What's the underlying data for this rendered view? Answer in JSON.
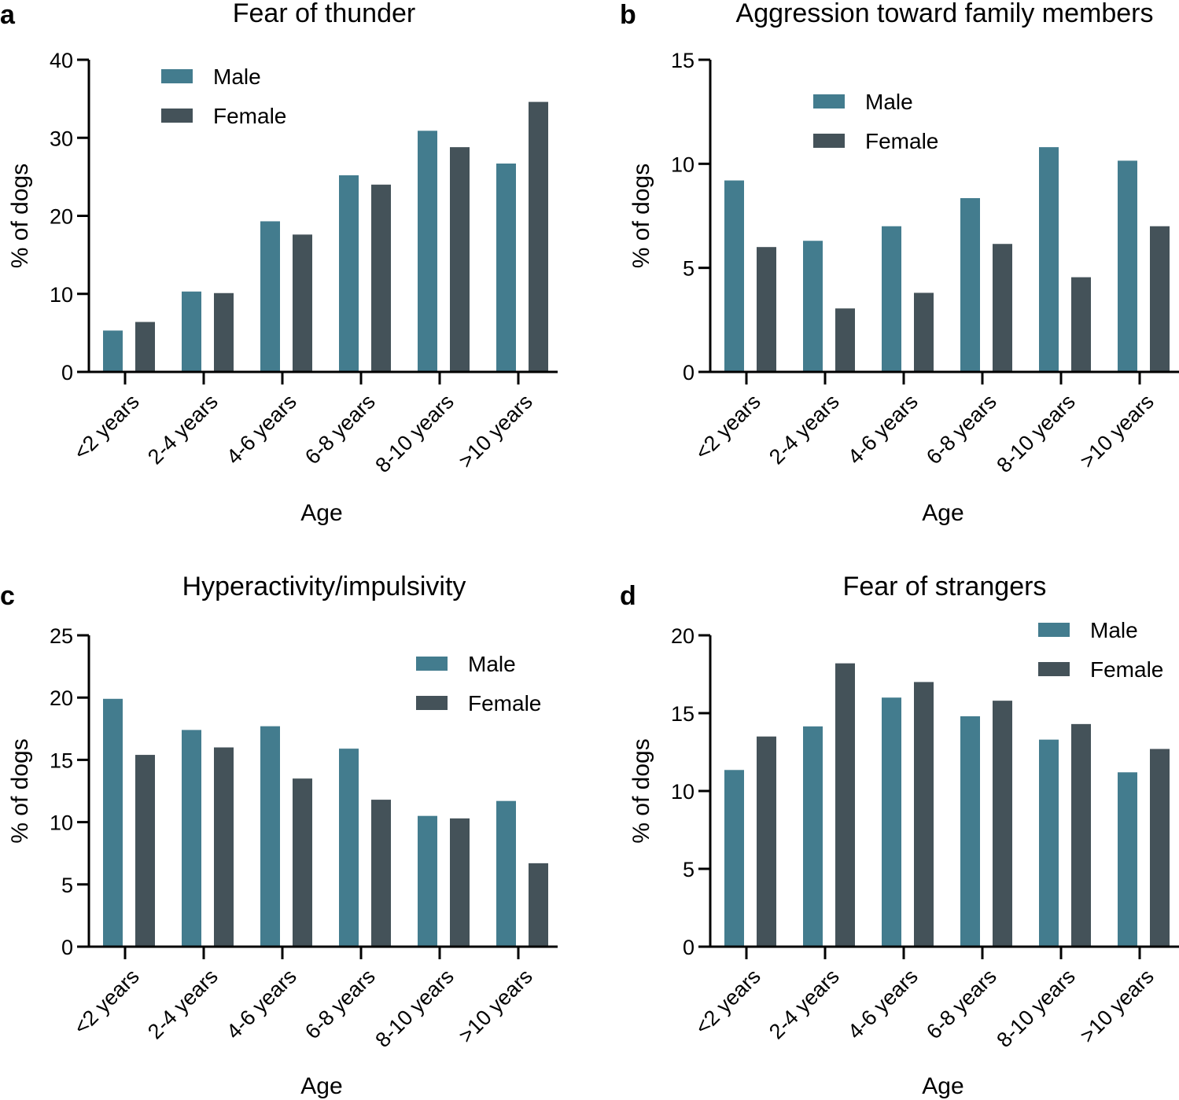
{
  "chart_data": [
    {
      "panel": "a",
      "type": "bar",
      "title": "Fear of thunder",
      "xlabel": "Age",
      "ylabel": "% of dogs",
      "ylim": [
        0,
        40
      ],
      "yticks": [
        0,
        10,
        20,
        30,
        40
      ],
      "categories": [
        "<2 years",
        "2-4 years",
        "4-6 years",
        "6-8 years",
        "8-10 years",
        ">10 years"
      ],
      "series": [
        {
          "name": "Male",
          "values": [
            5.3,
            10.3,
            19.3,
            25.2,
            30.9,
            26.7
          ]
        },
        {
          "name": "Female",
          "values": [
            6.4,
            10.1,
            17.6,
            24.0,
            28.8,
            34.6
          ]
        }
      ],
      "legend": "top-left"
    },
    {
      "panel": "b",
      "type": "bar",
      "title": "Aggression toward family members",
      "xlabel": "Age",
      "ylabel": "% of dogs",
      "ylim": [
        0,
        15
      ],
      "yticks": [
        0,
        5,
        10,
        15
      ],
      "categories": [
        "<2 years",
        "2-4 years",
        "4-6 years",
        "6-8 years",
        "8-10 years",
        ">10 years"
      ],
      "series": [
        {
          "name": "Male",
          "values": [
            9.2,
            6.3,
            7.0,
            8.35,
            10.8,
            10.15
          ]
        },
        {
          "name": "Female",
          "values": [
            6.0,
            3.05,
            3.8,
            6.15,
            4.55,
            7.0
          ]
        }
      ],
      "legend": "top-left"
    },
    {
      "panel": "c",
      "type": "bar",
      "title": "Hyperactivity/impulsivity",
      "xlabel": "Age",
      "ylabel": "% of dogs",
      "ylim": [
        0,
        25
      ],
      "yticks": [
        0,
        5,
        10,
        15,
        20,
        25
      ],
      "categories": [
        "<2 years",
        "2-4 years",
        "4-6 years",
        "6-8 years",
        "8-10 years",
        ">10 years"
      ],
      "series": [
        {
          "name": "Male",
          "values": [
            19.9,
            17.4,
            17.7,
            15.9,
            10.5,
            11.7
          ]
        },
        {
          "name": "Female",
          "values": [
            15.4,
            16.0,
            13.5,
            11.8,
            10.3,
            6.7
          ]
        }
      ],
      "legend": "top-right"
    },
    {
      "panel": "d",
      "type": "bar",
      "title": "Fear of strangers",
      "xlabel": "Age",
      "ylabel": "% of dogs",
      "ylim": [
        0,
        20
      ],
      "yticks": [
        0,
        5,
        10,
        15,
        20
      ],
      "categories": [
        "<2 years",
        "2-4 years",
        "4-6 years",
        "6-8 years",
        "8-10 years",
        ">10 years"
      ],
      "series": [
        {
          "name": "Male",
          "values": [
            11.35,
            14.15,
            16.0,
            14.8,
            13.3,
            11.2
          ]
        },
        {
          "name": "Female",
          "values": [
            13.5,
            18.2,
            17.0,
            15.8,
            14.3,
            12.7
          ]
        }
      ],
      "legend": "top-right"
    }
  ],
  "colors": {
    "male": "#437c8e",
    "female": "#445259",
    "axis": "#000000"
  }
}
